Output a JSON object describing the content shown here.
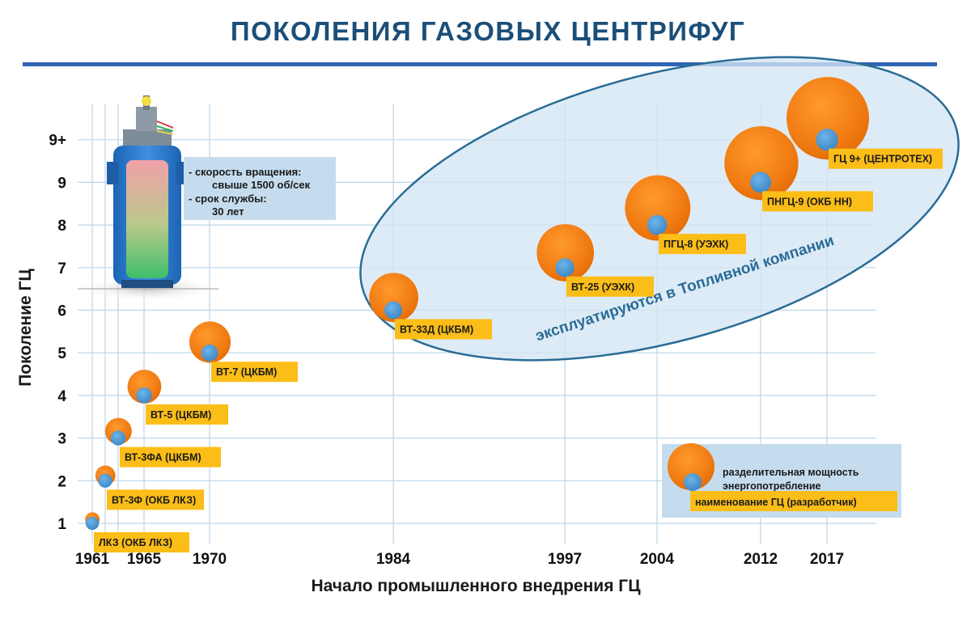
{
  "chart_data": {
    "type": "scatter",
    "title": "ПОКОЛЕНИЯ ГАЗОВЫХ ЦЕНТРИФУГ",
    "xlabel": "Начало промышленного внедрения ГЦ",
    "ylabel": "Поколение ГЦ",
    "x_ticks": [
      "1961",
      "1965",
      "1970",
      "1984",
      "1997",
      "2004",
      "2012",
      "2017"
    ],
    "y_ticks": [
      "1",
      "2",
      "3",
      "4",
      "5",
      "6",
      "7",
      "8",
      "9",
      "9+"
    ],
    "grid": true,
    "points": [
      {
        "label": "ЛКЗ (ОКБ ЛКЗ)",
        "x": 1961,
        "y": 1
      },
      {
        "label": "ВТ-3Ф (ОКБ ЛКЗ)",
        "x": 1962,
        "y": 2
      },
      {
        "label": "ВТ-3ФА (ЦКБМ)",
        "x": 1963,
        "y": 3
      },
      {
        "label": "ВТ-5 (ЦКБМ)",
        "x": 1965,
        "y": 4
      },
      {
        "label": "ВТ-7 (ЦКБМ)",
        "x": 1970,
        "y": 5
      },
      {
        "label": "ВТ-33Д (ЦКБМ)",
        "x": 1984,
        "y": 6
      },
      {
        "label": "ВТ-25 (УЭХК)",
        "x": 1997,
        "y": 7
      },
      {
        "label": "ПГЦ-8 (УЭХК)",
        "x": 2004,
        "y": 8
      },
      {
        "label": "ПНГЦ-9 (ОКБ НН)",
        "x": 2012,
        "y": 9
      },
      {
        "label": "ГЦ 9+ (ЦЕНТРОТЕХ)",
        "x": 2017,
        "y": 10
      }
    ],
    "annotation": "эксплуатируются в Топливной компании",
    "info_box": {
      "line1": "- скорость вращения:",
      "line2": "свыше 1500 об/сек",
      "line3": "- срок службы:",
      "line4": "30 лет"
    },
    "legend": {
      "line1": "разделительная мощность",
      "line2": "энергопотребление",
      "line3": "наименование ГЦ (разработчик)"
    },
    "colors": {
      "title": "#1b4f79",
      "orange": "#f07b12",
      "blue_dot": "#3f8fce",
      "label_bg": "#fbbd17",
      "oval_fill": "#d3e6f4",
      "oval_stroke": "#2a6c96",
      "grid": "#bcd5e8"
    }
  }
}
